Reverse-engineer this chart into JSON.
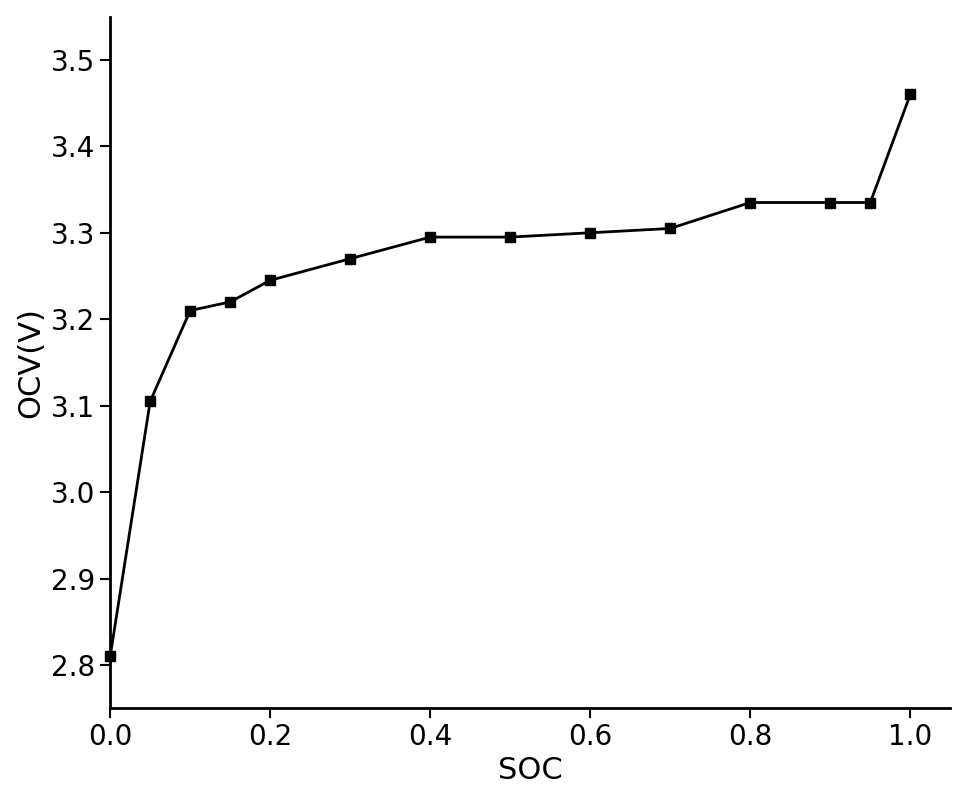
{
  "soc": [
    0.0,
    0.05,
    0.1,
    0.15,
    0.2,
    0.3,
    0.4,
    0.5,
    0.6,
    0.7,
    0.8,
    0.9,
    0.95,
    1.0
  ],
  "ocv": [
    2.81,
    3.105,
    3.21,
    3.22,
    3.245,
    3.27,
    3.295,
    3.295,
    3.3,
    3.305,
    3.335,
    3.335,
    3.335,
    3.46
  ],
  "xlabel": "SOC",
  "ylabel": "OCV(V)",
  "xlim": [
    0.0,
    1.05
  ],
  "ylim": [
    2.75,
    3.55
  ],
  "xticks": [
    0.0,
    0.2,
    0.4,
    0.6,
    0.8,
    1.0
  ],
  "yticks": [
    2.8,
    2.9,
    3.0,
    3.1,
    3.2,
    3.3,
    3.4,
    3.5
  ],
  "line_color": "#000000",
  "marker": "s",
  "marker_size": 7,
  "linewidth": 2.0,
  "xlabel_fontsize": 22,
  "ylabel_fontsize": 22,
  "tick_fontsize": 20,
  "background_color": "#ffffff",
  "spine_linewidth": 2.0
}
